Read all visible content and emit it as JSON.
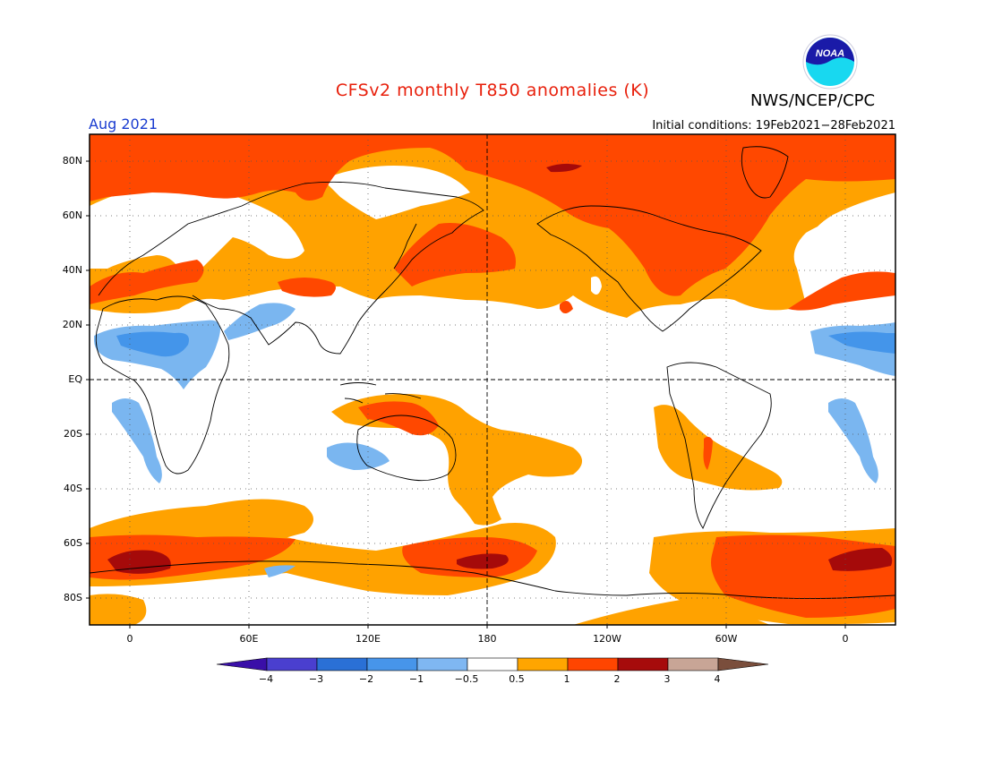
{
  "header": {
    "title": "CFSv2 monthly T850 anomalies (K)",
    "agency": "NWS/NCEP/CPC",
    "month": "Aug 2021",
    "initial_conditions": "Initial conditions: 19Feb2021−28Feb2021"
  },
  "logo": {
    "text": "NOAA"
  },
  "axes": {
    "lat_labels": [
      "80N",
      "60N",
      "40N",
      "20N",
      "EQ",
      "20S",
      "40S",
      "60S",
      "80S"
    ],
    "lon_labels": [
      "0",
      "60E",
      "120E",
      "180",
      "120W",
      "60W",
      "0"
    ]
  },
  "colorbar": {
    "labels": [
      "−4",
      "−3",
      "−2",
      "−1",
      "−0.5",
      "0.5",
      "1",
      "2",
      "3",
      "4"
    ],
    "colors": [
      "#3a0fa8",
      "#4a3fcf",
      "#2a70d6",
      "#4795ea",
      "#7fb7f2",
      "#ffffff",
      "#ffa500",
      "#ff4500",
      "#a60b0b",
      "#c8a596",
      "#7a4e3c"
    ]
  },
  "colors": {
    "title": "#e8200c",
    "month": "#1a3cd0",
    "ocean": "#ffffff",
    "orange": "#ffa200",
    "red": "#ff4800",
    "darkred": "#a50a0a",
    "lightblue": "#7ab6f0",
    "blue": "#4495ea"
  }
}
